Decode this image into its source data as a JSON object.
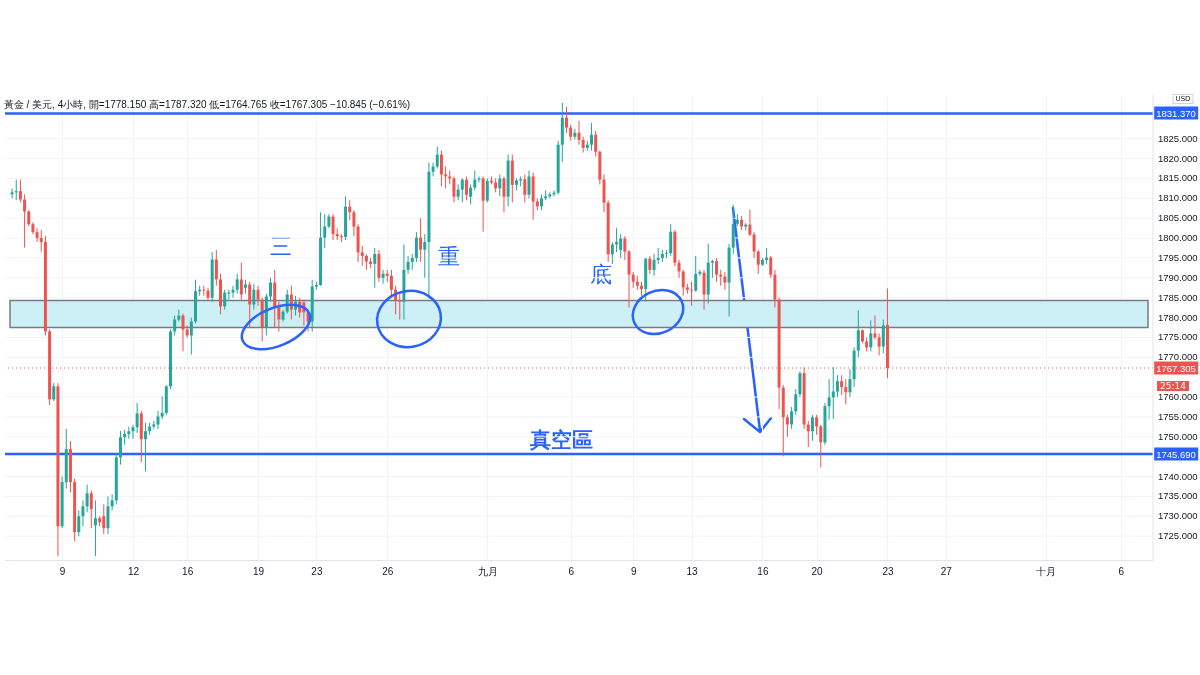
{
  "chart_data": {
    "type": "candlestick",
    "title": "黃金 / 美元, 4小時, 開=1778.150 高=1787.320 低=1764.765 收=1767.305 −10.845 (−0.61%)",
    "categories": [
      null,
      null,
      null,
      null,
      null,
      null,
      null,
      null,
      null,
      null,
      null,
      null,
      "9",
      null,
      null,
      null,
      null,
      null,
      null,
      null,
      null,
      null,
      null,
      null,
      null,
      null,
      null,
      null,
      null,
      "12",
      null,
      null,
      null,
      null,
      null,
      null,
      null,
      null,
      null,
      null,
      null,
      null,
      "16",
      null,
      null,
      null,
      null,
      null,
      null,
      null,
      null,
      null,
      null,
      null,
      null,
      null,
      null,
      null,
      null,
      "19",
      null,
      null,
      null,
      null,
      null,
      null,
      null,
      null,
      null,
      null,
      null,
      null,
      null,
      "23",
      null,
      null,
      null,
      null,
      null,
      null,
      null,
      null,
      null,
      null,
      null,
      null,
      null,
      null,
      null,
      null,
      "26",
      null,
      null,
      null,
      null,
      null,
      null,
      null,
      null,
      null,
      null,
      null,
      null,
      null,
      null,
      null,
      null,
      null,
      null,
      null,
      null,
      null,
      null,
      null,
      "九月",
      null,
      null,
      null,
      null,
      null,
      null,
      null,
      null,
      null,
      null,
      null,
      null,
      null,
      null,
      null,
      null,
      null,
      null,
      null,
      "6",
      null,
      null,
      null,
      null,
      null,
      null,
      null,
      null,
      null,
      null,
      null,
      null,
      null,
      null,
      "9",
      null,
      null,
      null,
      null,
      null,
      null,
      null,
      null,
      null,
      null,
      null,
      null,
      null,
      "13",
      null,
      null,
      null,
      null,
      null,
      null,
      null,
      null,
      null,
      null,
      null,
      null,
      null,
      null,
      null,
      null,
      "16",
      null,
      null,
      null,
      null,
      null,
      null,
      null,
      null,
      null,
      null,
      null,
      null,
      "20",
      null,
      null,
      null,
      null,
      null,
      null,
      null,
      null,
      null,
      null,
      null,
      null,
      null,
      null,
      null,
      null,
      "23",
      null,
      null,
      null,
      null,
      null,
      null,
      null,
      null,
      null,
      null,
      null,
      null,
      null,
      "27",
      null,
      null,
      null,
      null,
      null,
      null,
      null,
      null,
      null,
      null,
      null,
      null,
      null,
      null,
      null,
      null,
      null,
      null,
      null,
      null,
      null,
      null,
      null,
      "十月",
      null,
      null,
      null,
      null,
      null,
      null,
      null,
      null,
      null,
      null,
      null,
      null,
      null,
      null,
      null,
      null,
      null,
      "6",
      null,
      null,
      null,
      null,
      null,
      null
    ],
    "ohlc": [
      [
        1811,
        1812.5,
        1810,
        1811.5
      ],
      [
        1811.5,
        1814.7,
        1809.5,
        1811.8
      ],
      [
        1811.8,
        1814.7,
        1809,
        1809.7
      ],
      [
        1809.7,
        1811,
        1797.6,
        1806.7
      ],
      [
        1806.7,
        1807,
        1803,
        1803.5
      ],
      [
        1803.5,
        1804,
        1801,
        1801.5
      ],
      [
        1801.5,
        1802.5,
        1799,
        1800
      ],
      [
        1800,
        1802,
        1796.6,
        1799
      ],
      [
        1799,
        1800.5,
        1775.5,
        1776.5
      ],
      [
        1776.5,
        1777,
        1758,
        1759.4
      ],
      [
        1759.4,
        1763.5,
        1759,
        1762.7
      ],
      [
        1762.7,
        1763.5,
        1720,
        1727.5
      ],
      [
        1727.5,
        1740,
        1727,
        1738.6
      ],
      [
        1738.6,
        1752,
        1737,
        1746.9
      ],
      [
        1746.9,
        1748.9,
        1736,
        1738.6
      ],
      [
        1738.6,
        1739.5,
        1723.7,
        1726
      ],
      [
        1726,
        1731.5,
        1725,
        1730
      ],
      [
        1730,
        1734,
        1727.5,
        1732.5
      ],
      [
        1732.5,
        1738,
        1731,
        1735.8
      ],
      [
        1735.8,
        1736.5,
        1727,
        1731.8
      ],
      [
        1727.7,
        1734,
        1720,
        1729.5
      ],
      [
        1729.5,
        1730,
        1727.5,
        1728.5
      ],
      [
        1730,
        1733,
        1725.5,
        1727
      ],
      [
        1727,
        1735,
        1725.5,
        1732.5
      ],
      [
        1732.5,
        1735.5,
        1731.5,
        1734
      ],
      [
        1734,
        1746,
        1733,
        1744.8
      ],
      [
        1744.8,
        1751.5,
        1743,
        1749.9
      ],
      [
        1749.9,
        1751.8,
        1748,
        1750.7
      ],
      [
        1750.7,
        1752.5,
        1749.5,
        1751.4
      ],
      [
        1751.4,
        1753,
        1749.5,
        1752.4
      ],
      [
        1752.4,
        1758.5,
        1751,
        1755.9
      ],
      [
        1755.9,
        1756.5,
        1743.6,
        1749.4
      ],
      [
        1749.4,
        1753.5,
        1741.3,
        1751.4
      ],
      [
        1751.4,
        1753.5,
        1750.5,
        1752.6
      ],
      [
        1752.6,
        1754,
        1752,
        1753.1
      ],
      [
        1753.1,
        1756.5,
        1752,
        1755.1
      ],
      [
        1755.1,
        1760.2,
        1754.5,
        1756
      ],
      [
        1756,
        1763,
        1755.5,
        1762.7
      ],
      [
        1762.7,
        1777,
        1762,
        1776.5
      ],
      [
        1776.5,
        1780.5,
        1775.5,
        1779.5
      ],
      [
        1779.5,
        1782,
        1779,
        1780.5
      ],
      [
        1780.5,
        1781,
        1771.5,
        1777
      ],
      [
        1777,
        1778,
        1775,
        1775.5
      ],
      [
        1775.5,
        1780,
        1770.7,
        1779
      ],
      [
        1779,
        1789.5,
        1778.5,
        1786.6
      ],
      [
        1786.6,
        1788,
        1785.5,
        1787
      ],
      [
        1787,
        1788,
        1785.5,
        1786.8
      ],
      [
        1786.8,
        1787.5,
        1784.5,
        1785
      ],
      [
        1785,
        1796.5,
        1784,
        1794.6
      ],
      [
        1794.6,
        1797,
        1788,
        1789.6
      ],
      [
        1789.6,
        1791,
        1780.8,
        1782.8
      ],
      [
        1782.8,
        1787,
        1782,
        1786.3
      ],
      [
        1786,
        1787,
        1784.5,
        1786.3
      ],
      [
        1786.3,
        1788,
        1785,
        1787
      ],
      [
        1787,
        1791,
        1786,
        1789.6
      ],
      [
        1789.6,
        1793.8,
        1784.5,
        1785.8
      ],
      [
        1787.5,
        1789.5,
        1786,
        1788.3
      ],
      [
        1788.3,
        1789,
        1777.5,
        1783.3
      ],
      [
        1783.3,
        1788.5,
        1782,
        1787
      ],
      [
        1787,
        1788,
        1783,
        1784.5
      ],
      [
        1784.5,
        1785,
        1774,
        1777.5
      ],
      [
        1777.5,
        1786,
        1775.5,
        1785.3
      ],
      [
        1785.3,
        1790,
        1784,
        1788.8
      ],
      [
        1788.8,
        1792,
        1777.5,
        1782.5
      ],
      [
        1782.5,
        1784,
        1776.5,
        1779.5
      ],
      [
        1779.5,
        1782,
        1779,
        1781.5
      ],
      [
        1781.5,
        1787,
        1781,
        1785.8
      ],
      [
        1785.8,
        1788,
        1779.5,
        1782
      ],
      [
        1782,
        1785.5,
        1780.5,
        1784
      ],
      [
        1784,
        1785,
        1780,
        1781.3
      ],
      [
        1783.8,
        1784.5,
        1778,
        1781.3
      ],
      [
        1781.3,
        1782,
        1776.5,
        1779
      ],
      [
        1779,
        1789.5,
        1776.5,
        1787.8
      ],
      [
        1787.8,
        1789,
        1787,
        1788.2
      ],
      [
        1788.2,
        1806.5,
        1788,
        1800.1
      ],
      [
        1800.1,
        1806,
        1797.5,
        1802.9
      ],
      [
        1802.9,
        1806,
        1802.5,
        1805.4
      ],
      [
        1805.4,
        1806,
        1799.5,
        1801
      ],
      [
        1801,
        1802.5,
        1799.5,
        1800.5
      ],
      [
        1800.5,
        1801,
        1799,
        1800.3
      ],
      [
        1800.3,
        1810.5,
        1799.5,
        1807.9
      ],
      [
        1807.9,
        1809.5,
        1804.5,
        1806.5
      ],
      [
        1806.5,
        1807,
        1800.5,
        1802.9
      ],
      [
        1802.9,
        1803.5,
        1794,
        1796.4
      ],
      [
        1796.4,
        1798,
        1793,
        1795.5
      ],
      [
        1795.5,
        1796,
        1792,
        1794.1
      ],
      [
        1794.1,
        1795,
        1792.5,
        1793.5
      ],
      [
        1793.5,
        1797.5,
        1787.5,
        1796
      ],
      [
        1796,
        1797,
        1789,
        1790
      ],
      [
        1790,
        1792,
        1788.5,
        1791
      ],
      [
        1791,
        1792,
        1789,
        1790.5
      ],
      [
        1790.5,
        1792,
        1785.5,
        1787
      ],
      [
        1787,
        1788,
        1780.8,
        1784.4
      ],
      [
        1784.4,
        1786,
        1779.5,
        1784
      ],
      [
        1784,
        1798.4,
        1779.5,
        1792
      ],
      [
        1792,
        1795.5,
        1791,
        1794
      ],
      [
        1794,
        1796,
        1792,
        1795
      ],
      [
        1795,
        1801.5,
        1794,
        1800.1
      ],
      [
        1800.1,
        1805,
        1794,
        1797.1
      ],
      [
        1797.1,
        1801,
        1790,
        1799
      ],
      [
        1799,
        1819,
        1785,
        1816.7
      ],
      [
        1816.7,
        1819,
        1815.5,
        1818
      ],
      [
        1818,
        1823,
        1817.5,
        1821
      ],
      [
        1821,
        1822,
        1813,
        1816
      ],
      [
        1816,
        1818,
        1812.5,
        1815.5
      ],
      [
        1815.5,
        1817,
        1813.5,
        1815
      ],
      [
        1815,
        1815.5,
        1809,
        1810.4
      ],
      [
        1810.4,
        1813.5,
        1809.5,
        1812.2
      ],
      [
        1812.2,
        1815,
        1809,
        1814.7
      ],
      [
        1814.7,
        1815.5,
        1809.5,
        1810.9
      ],
      [
        1810.4,
        1813.5,
        1808.5,
        1812.7
      ],
      [
        1812.7,
        1817,
        1812,
        1814.7
      ],
      [
        1814.7,
        1815.5,
        1814,
        1815
      ],
      [
        1815,
        1815.5,
        1801.6,
        1809.4
      ],
      [
        1809.4,
        1815,
        1809,
        1814.4
      ],
      [
        1814.4,
        1815.5,
        1813.5,
        1814
      ],
      [
        1814,
        1815,
        1811.5,
        1812.5
      ],
      [
        1812.5,
        1816,
        1810.5,
        1815
      ],
      [
        1815,
        1815.5,
        1806.5,
        1810.4
      ],
      [
        1810.4,
        1821,
        1808,
        1819.5
      ],
      [
        1819.5,
        1821,
        1809,
        1813.4
      ],
      [
        1813.4,
        1815,
        1812,
        1814.5
      ],
      [
        1814.5,
        1815.5,
        1813,
        1814.8
      ],
      [
        1814.8,
        1816,
        1809,
        1810.9
      ],
      [
        1810.9,
        1817,
        1810,
        1815.5
      ],
      [
        1815.5,
        1816.5,
        1804.6,
        1809.2
      ],
      [
        1809.2,
        1810,
        1807,
        1808
      ],
      [
        1808,
        1811,
        1807,
        1810
      ],
      [
        1810,
        1812,
        1809.5,
        1810.5
      ],
      [
        1810.5,
        1811.5,
        1810,
        1811
      ],
      [
        1811,
        1812,
        1810.5,
        1811.4
      ],
      [
        1811.4,
        1824.5,
        1811,
        1823.5
      ],
      [
        1823.5,
        1834,
        1819.2,
        1830.3
      ],
      [
        1830.3,
        1833,
        1826.5,
        1827.8
      ],
      [
        1827.8,
        1828.5,
        1824.5,
        1825.5
      ],
      [
        1825.5,
        1827.5,
        1824.8,
        1826.5
      ],
      [
        1826.5,
        1829.5,
        1823.5,
        1824.7
      ],
      [
        1824.7,
        1825.5,
        1821.5,
        1822.7
      ],
      [
        1822.7,
        1824.5,
        1822,
        1823.5
      ],
      [
        1823.5,
        1829,
        1822,
        1826
      ],
      [
        1826,
        1827,
        1820.5,
        1821.7
      ],
      [
        1821.7,
        1822,
        1813.5,
        1814.7
      ],
      [
        1814.7,
        1816,
        1806.5,
        1808.9
      ],
      [
        1808.9,
        1809.5,
        1794,
        1795.9
      ],
      [
        1795.9,
        1799,
        1793.5,
        1798.4
      ],
      [
        1798.4,
        1802.5,
        1796.5,
        1799
      ],
      [
        1797,
        1801,
        1795,
        1799.9
      ],
      [
        1799.9,
        1800.5,
        1794.5,
        1796.6
      ],
      [
        1796.6,
        1797,
        1782.5,
        1790.8
      ],
      [
        1790.8,
        1791.5,
        1787.5,
        1789
      ],
      [
        1789,
        1790.5,
        1787,
        1788
      ],
      [
        1788,
        1789,
        1785.5,
        1787.2
      ],
      [
        1787.2,
        1795,
        1784,
        1794.8
      ],
      [
        1794.8,
        1795.5,
        1791,
        1792
      ],
      [
        1792,
        1796,
        1790.5,
        1794.5
      ],
      [
        1794.5,
        1797.5,
        1793.5,
        1795
      ],
      [
        1795,
        1797,
        1794,
        1796
      ],
      [
        1796,
        1797,
        1795,
        1796.2
      ],
      [
        1796.2,
        1803.5,
        1795.5,
        1801.6
      ],
      [
        1801.6,
        1802,
        1793,
        1793.8
      ],
      [
        1793.8,
        1794.5,
        1790,
        1791.6
      ],
      [
        1791.6,
        1792,
        1785.5,
        1787.6
      ],
      [
        1787.6,
        1788.5,
        1786,
        1787
      ],
      [
        1787,
        1789,
        1783,
        1786.8
      ],
      [
        1786.8,
        1795.5,
        1786.5,
        1791
      ],
      [
        1791,
        1792,
        1790.5,
        1791.5
      ],
      [
        1791.3,
        1792,
        1782,
        1785.8
      ],
      [
        1785.8,
        1798.6,
        1783.5,
        1793.8
      ],
      [
        1793.8,
        1794.5,
        1790,
        1794.2
      ],
      [
        1794.2,
        1795,
        1789,
        1790.8
      ],
      [
        1790.8,
        1792,
        1788,
        1790.3
      ],
      [
        1790.3,
        1791.5,
        1787,
        1788.8
      ],
      [
        1788.8,
        1798.5,
        1780.3,
        1797.6
      ],
      [
        1797.6,
        1808.4,
        1796,
        1803.6
      ],
      [
        1803.6,
        1806,
        1803,
        1804.6
      ],
      [
        1804.6,
        1805.5,
        1802,
        1802.9
      ],
      [
        1802.9,
        1803.8,
        1802,
        1803.4
      ],
      [
        1803.4,
        1807.2,
        1800.5,
        1800.9
      ],
      [
        1800.9,
        1801.5,
        1795,
        1796.6
      ],
      [
        1796.6,
        1797,
        1791,
        1793.3
      ],
      [
        1793.3,
        1795,
        1793,
        1794.5
      ],
      [
        1794.5,
        1797.5,
        1793.5,
        1795.1
      ],
      [
        1795.1,
        1795.5,
        1790,
        1790.8
      ],
      [
        1790.8,
        1792,
        1782.5,
        1784.5
      ],
      [
        1784.5,
        1785,
        1757,
        1762.4
      ],
      [
        1762.4,
        1763,
        1745.1,
        1754.9
      ],
      [
        1754.9,
        1755.5,
        1750,
        1753.1
      ],
      [
        1753.1,
        1757.5,
        1752,
        1756.4
      ],
      [
        1756.4,
        1762,
        1755.5,
        1760.7
      ],
      [
        1760.7,
        1766.5,
        1760,
        1766
      ],
      [
        1766,
        1767.5,
        1752,
        1753.1
      ],
      [
        1753.1,
        1754,
        1747.4,
        1751.4
      ],
      [
        1751.4,
        1755.5,
        1749,
        1754.9
      ],
      [
        1754.9,
        1755.5,
        1750.5,
        1752.6
      ],
      [
        1752.6,
        1753,
        1742.3,
        1748.6
      ],
      [
        1748.6,
        1758.5,
        1748,
        1757.7
      ],
      [
        1757.7,
        1764.5,
        1754.3,
        1759.9
      ],
      [
        1759.9,
        1767.5,
        1754.5,
        1761.4
      ],
      [
        1761.4,
        1765.5,
        1760,
        1764
      ],
      [
        1764,
        1765.5,
        1760.5,
        1762.5
      ],
      [
        1762.5,
        1764.5,
        1758.2,
        1761.2
      ],
      [
        1761.2,
        1767,
        1760,
        1764.5
      ],
      [
        1764.5,
        1772.5,
        1762.5,
        1771.7
      ],
      [
        1771.7,
        1781.8,
        1770,
        1776.8
      ],
      [
        1776.8,
        1777,
        1773.5,
        1774
      ],
      [
        1774,
        1775,
        1771.5,
        1772.5
      ],
      [
        1772.5,
        1779.3,
        1771.5,
        1776
      ],
      [
        1776,
        1780.5,
        1774.5,
        1775
      ],
      [
        1775,
        1776,
        1770.5,
        1772.7
      ],
      [
        1772.7,
        1779.5,
        1771,
        1778
      ],
      [
        1778.15,
        1787.32,
        1764.765,
        1767.305
      ],
      null,
      null,
      null,
      null,
      null,
      null,
      null,
      null,
      null,
      null,
      null,
      null,
      null,
      null,
      null,
      null,
      null,
      null,
      null,
      null,
      null,
      null,
      null,
      null,
      null,
      null,
      null,
      null,
      null,
      null,
      null,
      null,
      null,
      null,
      null,
      null,
      null,
      null,
      null,
      null,
      null,
      null,
      null,
      null,
      null,
      null,
      null,
      null,
      null,
      null,
      null,
      null,
      null,
      null,
      null,
      null,
      null,
      null,
      null,
      null,
      null,
      null
    ],
    "ylim": [
      1719,
      1836
    ],
    "yticks": [
      {
        "value": 1725,
        "label": "1725.000"
      },
      {
        "value": 1730,
        "label": "1730.000"
      },
      {
        "value": 1735,
        "label": "1735.000"
      },
      {
        "value": 1740,
        "label": "1740.000"
      },
      {
        "value": 1750,
        "label": "1750.000"
      },
      {
        "value": 1755,
        "label": "1755.000"
      },
      {
        "value": 1760,
        "label": "1760.000"
      },
      {
        "value": 1770,
        "label": "1770.000"
      },
      {
        "value": 1775,
        "label": "1775.000"
      },
      {
        "value": 1780,
        "label": "1780.000"
      },
      {
        "value": 1785,
        "label": "1785.000"
      },
      {
        "value": 1790,
        "label": "1790.000"
      },
      {
        "value": 1795,
        "label": "1795.000"
      },
      {
        "value": 1800,
        "label": "1800.000"
      },
      {
        "value": 1805,
        "label": "1805.000"
      },
      {
        "value": 1810,
        "label": "1810.000"
      },
      {
        "value": 1815,
        "label": "1815.000"
      },
      {
        "value": 1820,
        "label": "1820.000"
      },
      {
        "value": 1825,
        "label": "1825.000"
      }
    ],
    "grid": true,
    "ref_lines": [
      {
        "axis": "y",
        "value": 1831.37,
        "label": "1831.370",
        "color": "#2962ff",
        "line_style": "solid"
      },
      {
        "axis": "y",
        "value": 1745.69,
        "label": "1745.690",
        "color": "#2962ff",
        "line_style": "solid"
      },
      {
        "axis": "y",
        "value": 1767.305,
        "label": "1767.305",
        "color": "#ef5350",
        "line_style": "dotted"
      }
    ],
    "bands": [
      {
        "axis": "y",
        "from": 1777.5,
        "to": 1784.3,
        "color": "#cdeff6"
      }
    ],
    "annotations": [
      "三",
      "重",
      "底",
      "真空區",
      "USD",
      "25:14"
    ]
  }
}
